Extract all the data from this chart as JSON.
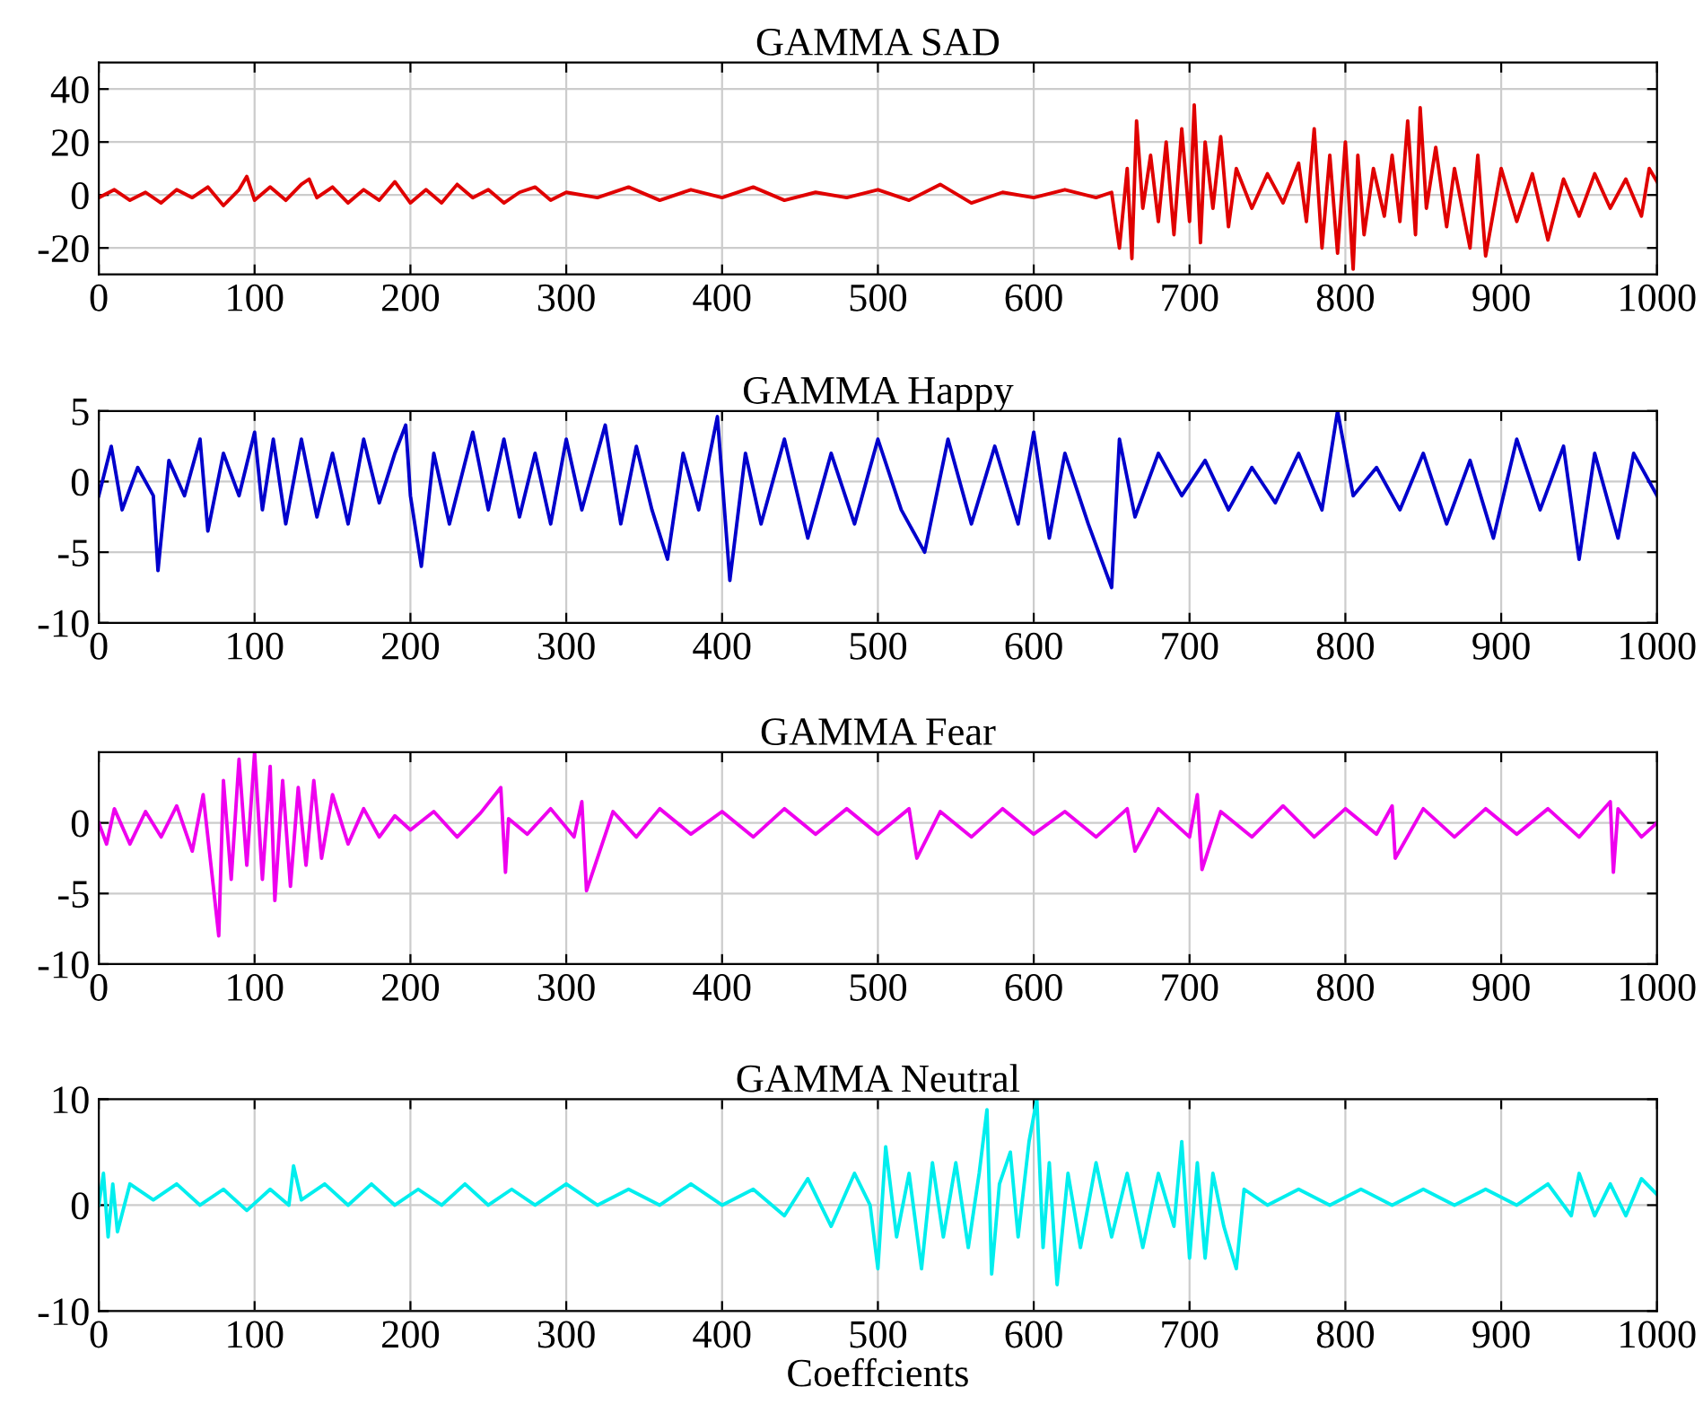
{
  "chart_data": [
    {
      "type": "line",
      "title": "GAMMA SAD",
      "xlim": [
        0,
        1000
      ],
      "xticks": [
        0,
        100,
        200,
        300,
        400,
        500,
        600,
        700,
        800,
        900,
        1000
      ],
      "ylim": [
        -30,
        50
      ],
      "yticks": [
        -20,
        0,
        20,
        40
      ],
      "grid": true,
      "series": [
        {
          "color": "#e00000",
          "x": [
            0,
            10,
            20,
            30,
            40,
            50,
            60,
            70,
            80,
            90,
            95,
            100,
            110,
            120,
            130,
            135,
            140,
            150,
            160,
            170,
            180,
            190,
            200,
            210,
            220,
            230,
            240,
            250,
            260,
            270,
            280,
            290,
            300,
            320,
            340,
            360,
            380,
            400,
            420,
            440,
            460,
            480,
            500,
            520,
            540,
            560,
            580,
            600,
            620,
            640,
            650,
            655,
            660,
            663,
            666,
            670,
            675,
            680,
            685,
            690,
            695,
            700,
            703,
            707,
            710,
            715,
            720,
            725,
            730,
            740,
            750,
            760,
            770,
            775,
            780,
            785,
            790,
            795,
            800,
            805,
            808,
            812,
            818,
            825,
            830,
            835,
            840,
            845,
            848,
            852,
            858,
            865,
            870,
            880,
            885,
            890,
            900,
            910,
            920,
            930,
            940,
            950,
            960,
            970,
            980,
            990,
            995,
            1000
          ],
          "values": [
            -1,
            2,
            -2,
            1,
            -3,
            2,
            -1,
            3,
            -4,
            2,
            7,
            -2,
            3,
            -2,
            4,
            6,
            -1,
            3,
            -3,
            2,
            -2,
            5,
            -3,
            2,
            -3,
            4,
            -1,
            2,
            -3,
            1,
            3,
            -2,
            1,
            -1,
            3,
            -2,
            2,
            -1,
            3,
            -2,
            1,
            -1,
            2,
            -2,
            4,
            -3,
            1,
            -1,
            2,
            -1,
            1,
            -20,
            10,
            -24,
            28,
            -5,
            15,
            -10,
            20,
            -15,
            25,
            -10,
            34,
            -18,
            20,
            -5,
            22,
            -12,
            10,
            -5,
            8,
            -3,
            12,
            -10,
            25,
            -20,
            15,
            -22,
            20,
            -28,
            15,
            -15,
            10,
            -8,
            15,
            -10,
            28,
            -15,
            33,
            -5,
            18,
            -12,
            10,
            -20,
            15,
            -23,
            10,
            -10,
            8,
            -17,
            6,
            -8,
            8,
            -5,
            6,
            -8,
            10,
            5
          ]
        }
      ]
    },
    {
      "type": "line",
      "title": "GAMMA Happy",
      "xlim": [
        0,
        1000
      ],
      "xticks": [
        0,
        100,
        200,
        300,
        400,
        500,
        600,
        700,
        800,
        900,
        1000
      ],
      "ylim": [
        -10,
        5
      ],
      "yticks": [
        -10,
        -5,
        0,
        5
      ],
      "grid": true,
      "series": [
        {
          "color": "#0000cc",
          "x": [
            0,
            8,
            15,
            25,
            35,
            38,
            45,
            55,
            65,
            70,
            80,
            90,
            100,
            105,
            112,
            120,
            130,
            140,
            150,
            160,
            170,
            180,
            190,
            197,
            200,
            207,
            215,
            225,
            240,
            250,
            260,
            270,
            280,
            290,
            300,
            310,
            320,
            325,
            335,
            345,
            355,
            365,
            375,
            385,
            397,
            405,
            415,
            425,
            440,
            455,
            470,
            485,
            500,
            515,
            530,
            545,
            560,
            575,
            590,
            600,
            610,
            620,
            635,
            650,
            655,
            665,
            680,
            695,
            710,
            725,
            740,
            755,
            770,
            785,
            795,
            805,
            820,
            835,
            850,
            865,
            880,
            895,
            910,
            925,
            940,
            950,
            960,
            975,
            985,
            1000
          ],
          "values": [
            -1,
            2.5,
            -2,
            1,
            -1,
            -6.3,
            1.5,
            -1,
            3,
            -3.5,
            2,
            -1,
            3.5,
            -2,
            3,
            -3,
            3,
            -2.5,
            2,
            -3,
            3,
            -1.5,
            2,
            4,
            -1,
            -6,
            2,
            -3,
            3.5,
            -2,
            3,
            -2.5,
            2,
            -3,
            3,
            -2,
            2,
            4,
            -3,
            2.5,
            -2,
            -5.5,
            2,
            -2,
            4.6,
            -7,
            2,
            -3,
            3,
            -4,
            2,
            -3,
            3,
            -2,
            -5,
            3,
            -3,
            2.5,
            -3,
            3.5,
            -4,
            2,
            -3,
            -7.5,
            3,
            -2.5,
            2,
            -1,
            1.5,
            -2,
            1,
            -1.5,
            2,
            -2,
            5,
            -1,
            1,
            -2,
            2,
            -3,
            1.5,
            -4,
            3,
            -2,
            2.5,
            -5.5,
            2,
            -4,
            2,
            -1
          ]
        }
      ]
    },
    {
      "type": "line",
      "title": "GAMMA Fear",
      "xlim": [
        0,
        1000
      ],
      "xticks": [
        0,
        100,
        200,
        300,
        400,
        500,
        600,
        700,
        800,
        900,
        1000
      ],
      "ylim": [
        -10,
        5
      ],
      "yticks": [
        -10,
        -5,
        0
      ],
      "grid": true,
      "series": [
        {
          "color": "#ee00ee",
          "x": [
            0,
            5,
            10,
            20,
            30,
            40,
            50,
            60,
            67,
            72,
            77,
            80,
            85,
            90,
            95,
            100,
            105,
            110,
            113,
            118,
            123,
            128,
            133,
            138,
            143,
            150,
            160,
            170,
            180,
            190,
            200,
            215,
            230,
            245,
            258,
            261,
            263,
            275,
            290,
            305,
            310,
            313,
            330,
            345,
            360,
            380,
            400,
            420,
            440,
            460,
            480,
            500,
            520,
            525,
            540,
            560,
            580,
            600,
            620,
            640,
            660,
            665,
            680,
            700,
            705,
            708,
            720,
            740,
            760,
            780,
            800,
            820,
            830,
            832,
            850,
            870,
            890,
            910,
            930,
            950,
            970,
            972,
            975,
            990,
            1000
          ],
          "values": [
            0,
            -1.5,
            1,
            -1.5,
            0.8,
            -1,
            1.2,
            -2,
            2,
            -3,
            -8,
            3,
            -4,
            4.5,
            -3,
            5,
            -4,
            4,
            -5.5,
            3,
            -4.5,
            2.5,
            -3,
            3,
            -2.5,
            2,
            -1.5,
            1,
            -1,
            0.5,
            -0.5,
            0.8,
            -1,
            0.7,
            2.5,
            -3.5,
            0.3,
            -0.8,
            1,
            -1,
            1.5,
            -4.8,
            0.8,
            -1,
            1,
            -0.8,
            0.8,
            -1,
            1,
            -0.8,
            1,
            -0.8,
            1,
            -2.5,
            0.8,
            -1,
            1,
            -0.8,
            0.8,
            -1,
            1,
            -2,
            1,
            -1,
            2,
            -3.3,
            0.8,
            -1,
            1.2,
            -1,
            1,
            -0.8,
            1.2,
            -2.5,
            1,
            -1,
            1,
            -0.8,
            1,
            -1,
            1.5,
            -3.5,
            1,
            -1,
            0
          ]
        }
      ]
    },
    {
      "type": "line",
      "title": "GAMMA Neutral",
      "xlabel": "Coeffcients",
      "xlim": [
        0,
        1000
      ],
      "xticks": [
        0,
        100,
        200,
        300,
        400,
        500,
        600,
        700,
        800,
        900,
        1000
      ],
      "ylim": [
        -10,
        10
      ],
      "yticks": [
        -10,
        0,
        10
      ],
      "grid": true,
      "series": [
        {
          "color": "#00eeee",
          "x": [
            0,
            3,
            6,
            9,
            12,
            20,
            35,
            50,
            65,
            80,
            95,
            110,
            122,
            125,
            130,
            145,
            160,
            175,
            190,
            205,
            220,
            235,
            250,
            265,
            280,
            300,
            320,
            340,
            360,
            380,
            400,
            420,
            440,
            455,
            470,
            485,
            495,
            500,
            505,
            512,
            520,
            528,
            535,
            542,
            550,
            558,
            565,
            570,
            573,
            578,
            585,
            590,
            597,
            602,
            606,
            610,
            615,
            622,
            630,
            640,
            650,
            660,
            670,
            680,
            690,
            695,
            700,
            705,
            710,
            715,
            722,
            730,
            735,
            750,
            770,
            790,
            810,
            830,
            850,
            870,
            890,
            910,
            930,
            945,
            950,
            960,
            970,
            980,
            990,
            1000
          ],
          "values": [
            0,
            3,
            -3,
            2,
            -2.5,
            2,
            0.5,
            2,
            0,
            1.5,
            -0.5,
            1.5,
            0,
            3.7,
            0.5,
            2,
            0,
            2,
            0,
            1.5,
            0,
            2,
            0,
            1.5,
            0,
            2,
            0,
            1.5,
            0,
            2,
            0,
            1.5,
            -1,
            2.5,
            -2,
            3,
            0,
            -6,
            5.5,
            -3,
            3,
            -6,
            4,
            -3,
            4,
            -4,
            3,
            9,
            -6.5,
            2,
            5,
            -3,
            6,
            10,
            -4,
            4,
            -7.5,
            3,
            -4,
            4,
            -3,
            3,
            -4,
            3,
            -2,
            6,
            -5,
            4,
            -5,
            3,
            -2,
            -6,
            1.5,
            0,
            1.5,
            0,
            1.5,
            0,
            1.5,
            0,
            1.5,
            0,
            2,
            -1,
            3,
            -1,
            2,
            -1,
            2.5,
            1
          ]
        }
      ]
    }
  ]
}
